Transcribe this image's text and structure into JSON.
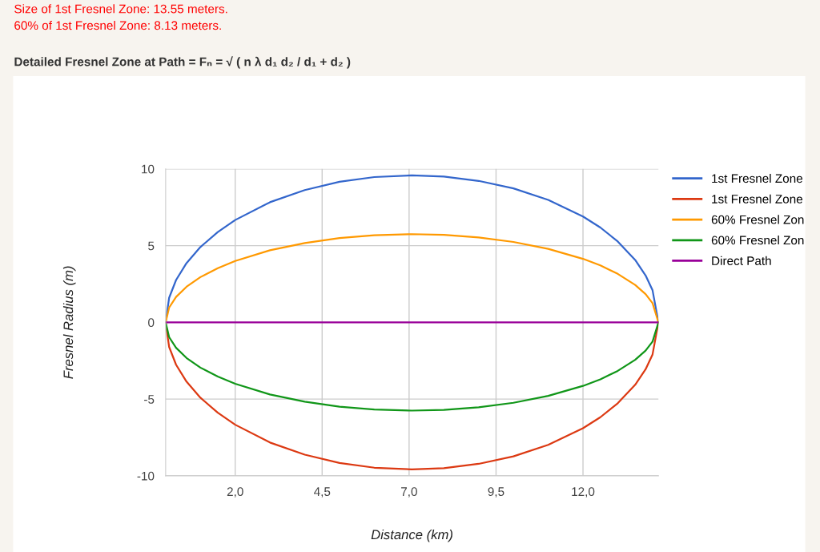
{
  "chart_data": {
    "type": "line",
    "title": "Detailed Fresnel Zone at Path = Fₙ = √ ( n λ d₁ d₂ / d₁ + d₂ )",
    "annotations": [
      "Size of 1st Fresnel Zone: 13.55 meters.",
      "60% of 1st Fresnel Zone: 8.13 meters."
    ],
    "xlabel": "Distance (km)",
    "ylabel": "Fresnel Radius (m)",
    "x": [
      0,
      0.1,
      0.3,
      0.6,
      1,
      1.5,
      2,
      3,
      4,
      5,
      6,
      7.08,
      8,
      9,
      10,
      11,
      12,
      12.5,
      13,
      13.5,
      13.8,
      14.0,
      14.17
    ],
    "series": [
      {
        "name": "1st Fresnel Zone",
        "color": "#3366cc",
        "values": [
          0,
          1.6,
          2.76,
          3.86,
          4.91,
          5.89,
          6.67,
          7.83,
          8.62,
          9.16,
          9.47,
          9.58,
          9.5,
          9.22,
          8.73,
          7.98,
          6.9,
          6.18,
          5.27,
          4.07,
          3.06,
          2.09,
          0
        ]
      },
      {
        "name": "1st Fresnel Zone",
        "color": "#dc3912",
        "values": [
          0,
          -1.6,
          -2.76,
          -3.86,
          -4.91,
          -5.89,
          -6.67,
          -7.83,
          -8.62,
          -9.16,
          -9.47,
          -9.58,
          -9.5,
          -9.22,
          -8.73,
          -7.98,
          -6.9,
          -6.18,
          -5.27,
          -4.07,
          -3.06,
          -2.09,
          0
        ]
      },
      {
        "name": "60% Fresnel Zon",
        "color": "#ff9900",
        "values": [
          0,
          0.96,
          1.66,
          2.32,
          2.95,
          3.53,
          4.0,
          4.7,
          5.17,
          5.5,
          5.68,
          5.75,
          5.7,
          5.53,
          5.24,
          4.79,
          4.14,
          3.71,
          3.16,
          2.44,
          1.84,
          1.25,
          0
        ]
      },
      {
        "name": "60% Fresnel Zon",
        "color": "#109618",
        "values": [
          0,
          -0.96,
          -1.66,
          -2.32,
          -2.95,
          -3.53,
          -4.0,
          -4.7,
          -5.17,
          -5.5,
          -5.68,
          -5.75,
          -5.7,
          -5.53,
          -5.24,
          -4.79,
          -4.14,
          -3.71,
          -3.16,
          -2.44,
          -1.84,
          -1.25,
          0
        ]
      },
      {
        "name": "Direct Path",
        "color": "#990099",
        "values": [
          0,
          0,
          0,
          0,
          0,
          0,
          0,
          0,
          0,
          0,
          0,
          0,
          0,
          0,
          0,
          0,
          0,
          0,
          0,
          0,
          0,
          0,
          0
        ]
      }
    ],
    "xlim": [
      0,
      14.17
    ],
    "xticks": [
      {
        "value": 2.0,
        "label": "2,0"
      },
      {
        "value": 4.5,
        "label": "4,5"
      },
      {
        "value": 7.0,
        "label": "7,0"
      },
      {
        "value": 9.5,
        "label": "9,5"
      },
      {
        "value": 12.0,
        "label": "12,0"
      }
    ],
    "ylim": [
      -10,
      10
    ],
    "yticks": [
      {
        "value": -10,
        "label": "-10"
      },
      {
        "value": -5,
        "label": "-5"
      },
      0,
      5,
      10
    ],
    "grid": true,
    "legend": "right",
    "marker": "none",
    "line_style": "solid"
  }
}
